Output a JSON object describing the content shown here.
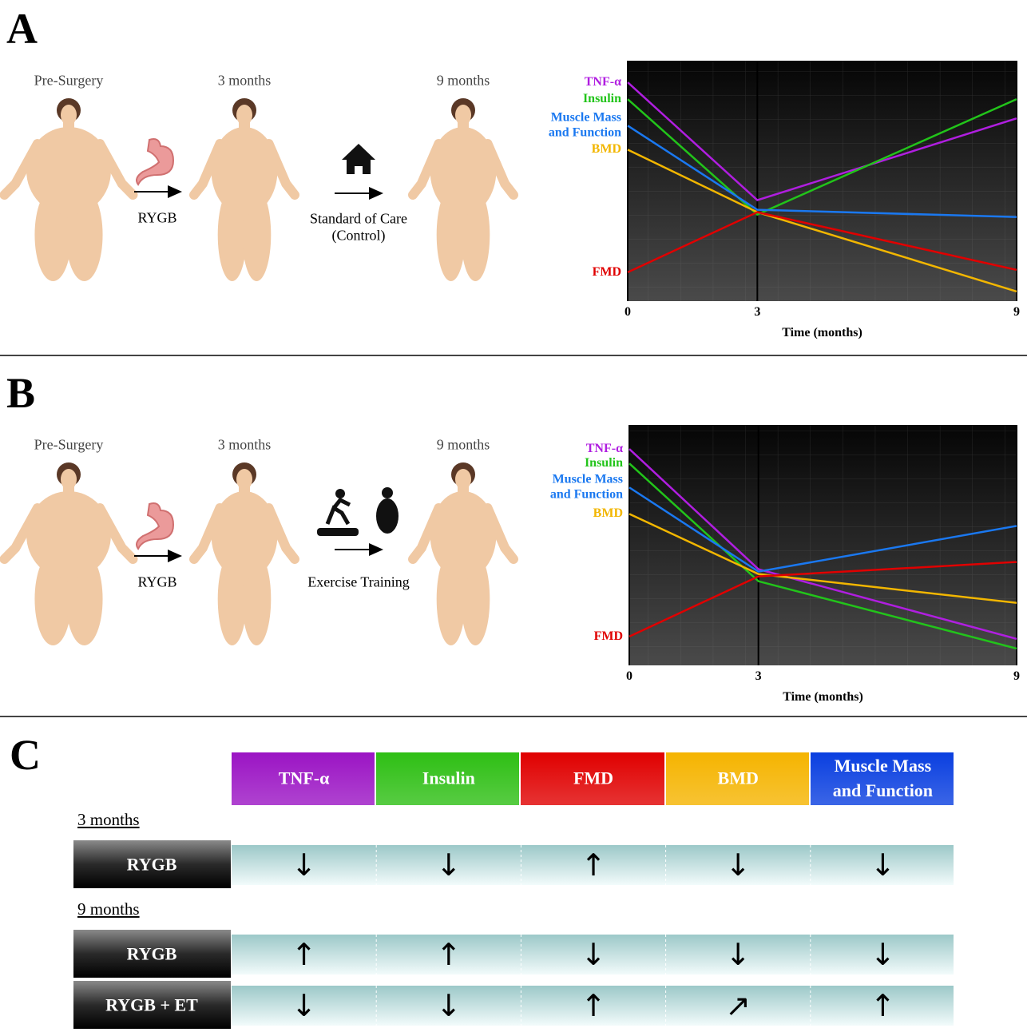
{
  "panels": [
    {
      "letter": "A",
      "stages": [
        "Pre-Surgery",
        "3 months",
        "9 months"
      ],
      "steps": [
        "RYGB",
        "Standard of Care\n(Control)"
      ]
    },
    {
      "letter": "B",
      "stages": [
        "Pre-Surgery",
        "3 months",
        "9 months"
      ],
      "steps": [
        "RYGB",
        "Exercise Training"
      ]
    }
  ],
  "chart_data": [
    {
      "type": "line",
      "x": [
        0,
        3,
        9
      ],
      "xlim": [
        0,
        9
      ],
      "xticks": [
        0,
        3,
        9
      ],
      "xlabel": "Time (months)",
      "ylim": [
        0,
        100
      ],
      "series": [
        {
          "name": "TNF-α",
          "color": "#b01ee0",
          "values": [
            91,
            42,
            76
          ]
        },
        {
          "name": "Insulin",
          "color": "#22c41a",
          "values": [
            84,
            36,
            84
          ]
        },
        {
          "name": "Muscle Mass\nand Function",
          "color": "#1a78f0",
          "values": [
            73,
            38,
            35
          ]
        },
        {
          "name": "BMD",
          "color": "#f2b600",
          "values": [
            63,
            37,
            4
          ]
        },
        {
          "name": "FMD",
          "color": "#e00000",
          "values": [
            12,
            37,
            13
          ]
        }
      ]
    },
    {
      "type": "line",
      "x": [
        0,
        3,
        9
      ],
      "xlim": [
        0,
        9
      ],
      "xticks": [
        0,
        3,
        9
      ],
      "xlabel": "Time (months)",
      "ylim": [
        0,
        100
      ],
      "series": [
        {
          "name": "TNF-α",
          "color": "#b01ee0",
          "values": [
            90,
            40,
            11
          ]
        },
        {
          "name": "Insulin",
          "color": "#22c41a",
          "values": [
            84,
            35,
            7
          ]
        },
        {
          "name": "Muscle Mass\nand Function",
          "color": "#1a78f0",
          "values": [
            74,
            39,
            58
          ]
        },
        {
          "name": "BMD",
          "color": "#f2b600",
          "values": [
            63,
            38,
            26
          ]
        },
        {
          "name": "FMD",
          "color": "#e00000",
          "values": [
            12,
            37,
            43
          ]
        }
      ]
    }
  ],
  "table": {
    "letter": "C",
    "columns": [
      {
        "name": "TNF-α",
        "color": "#9b14c4"
      },
      {
        "name": "Insulin",
        "color": "#2ebf14"
      },
      {
        "name": "FMD",
        "color": "#e00000"
      },
      {
        "name": "BMD",
        "color": "#f5b400"
      },
      {
        "name": "Muscle Mass\nand Function",
        "color": "#0a3fe0"
      }
    ],
    "sections": [
      {
        "title": "3 months",
        "rows": [
          {
            "label": "RYGB",
            "cells": [
              "↓",
              "↓",
              "↑",
              "↓",
              "↓"
            ]
          }
        ]
      },
      {
        "title": "9 months",
        "rows": [
          {
            "label": "RYGB",
            "cells": [
              "↑",
              "↑",
              "↓",
              "↓",
              "↓"
            ]
          },
          {
            "label": "RYGB + ET",
            "cells": [
              "↓",
              "↓",
              "↑",
              "↗",
              "↑"
            ]
          }
        ]
      }
    ]
  }
}
